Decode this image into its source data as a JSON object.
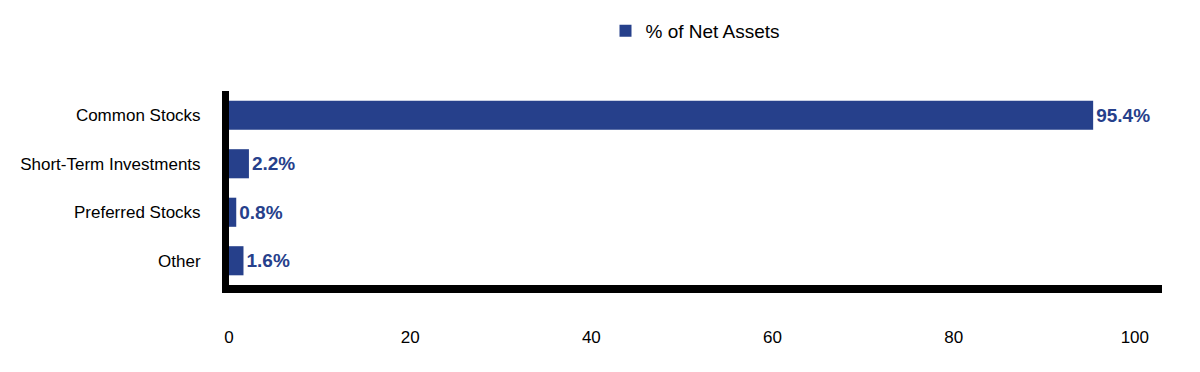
{
  "chart_data": {
    "type": "bar",
    "orientation": "horizontal",
    "categories": [
      "Common Stocks",
      "Short-Term Investments",
      "Preferred Stocks",
      "Other"
    ],
    "series": [
      {
        "name": "% of Net Assets",
        "color": "#26408b",
        "values": [
          95.4,
          2.2,
          0.8,
          1.6
        ],
        "value_labels": [
          "95.4%",
          "2.2%",
          "0.8%",
          "1.6%"
        ]
      }
    ],
    "xlim": [
      0,
      103
    ],
    "xticks": [
      0,
      20,
      40,
      60,
      80,
      100
    ],
    "grid": false,
    "legend": "top",
    "data_labels": true
  }
}
